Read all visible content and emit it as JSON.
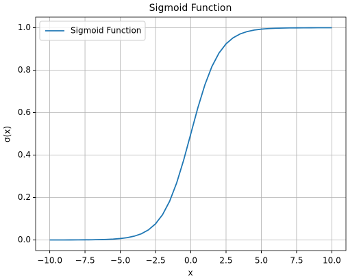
{
  "chart_data": {
    "type": "line",
    "title": "Sigmoid Function",
    "x_label": "x",
    "y_label": "σ(x)",
    "x": [
      -10,
      -9.5,
      -9,
      -8.5,
      -8,
      -7.5,
      -7,
      -6.5,
      -6,
      -5.5,
      -5,
      -4.5,
      -4,
      -3.5,
      -3,
      -2.5,
      -2,
      -1.5,
      -1,
      -0.5,
      0,
      0.5,
      1,
      1.5,
      2,
      2.5,
      3,
      3.5,
      4,
      4.5,
      5,
      5.5,
      6,
      6.5,
      7,
      7.5,
      8,
      8.5,
      9,
      9.5,
      10
    ],
    "series": [
      {
        "name": "Sigmoid Function",
        "color": "#1f77b4",
        "values": [
          0.0,
          0.0001,
          0.0001,
          0.0002,
          0.0003,
          0.0006,
          0.0009,
          0.0015,
          0.0025,
          0.0041,
          0.0067,
          0.011,
          0.018,
          0.0293,
          0.0474,
          0.0759,
          0.1192,
          0.1824,
          0.2689,
          0.3775,
          0.5,
          0.6225,
          0.7311,
          0.8176,
          0.8808,
          0.9241,
          0.9526,
          0.9707,
          0.982,
          0.989,
          0.9933,
          0.9959,
          0.9975,
          0.9985,
          0.9991,
          0.9994,
          0.9997,
          0.9998,
          0.9999,
          0.9999,
          1.0
        ]
      }
    ],
    "xlim": [
      -11,
      11
    ],
    "ylim": [
      -0.05,
      1.05
    ],
    "xticks": [
      {
        "value": -10,
        "label": "−10.0"
      },
      {
        "value": -7.5,
        "label": "−7.5"
      },
      {
        "value": -5,
        "label": "−5.0"
      },
      {
        "value": -2.5,
        "label": "−2.5"
      },
      {
        "value": 0,
        "label": "0.0"
      },
      2.5,
      {
        "value": 5,
        "label": "5.0"
      },
      7.5,
      {
        "value": 10,
        "label": "10.0"
      }
    ],
    "yticks": [
      {
        "value": 0,
        "label": "0.0"
      },
      0.2,
      0.4,
      0.6,
      0.8,
      {
        "value": 1,
        "label": "1.0"
      }
    ],
    "grid": true,
    "legend": "upper left"
  }
}
